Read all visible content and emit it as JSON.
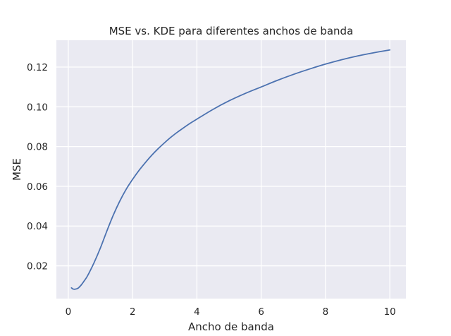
{
  "chart_data": {
    "type": "line",
    "title": "MSE vs. KDE para diferentes anchos de banda",
    "xlabel": "Ancho de banda",
    "ylabel": "MSE",
    "xlim": [
      -0.37,
      10.5
    ],
    "ylim": [
      0.0035,
      0.1335
    ],
    "xticks": [
      0,
      2,
      4,
      6,
      8,
      10
    ],
    "xtick_labels": [
      "0",
      "2",
      "4",
      "6",
      "8",
      "10"
    ],
    "yticks": [
      0.02,
      0.04,
      0.06,
      0.08,
      0.1,
      0.12
    ],
    "ytick_labels": [
      "0.02",
      "0.04",
      "0.06",
      "0.08",
      "0.10",
      "0.12"
    ],
    "grid": true,
    "series": [
      {
        "color": "#4c72b0",
        "x": [
          0.1,
          0.15,
          0.2,
          0.3,
          0.4,
          0.5,
          0.6,
          0.8,
          1.0,
          1.2,
          1.4,
          1.6,
          1.8,
          2.0,
          2.2,
          2.4,
          2.6,
          2.8,
          3.0,
          3.2,
          3.4,
          3.6,
          3.8,
          4.0,
          4.5,
          5.0,
          5.5,
          6.0,
          6.5,
          7.0,
          7.5,
          8.0,
          8.5,
          9.0,
          9.5,
          10.0
        ],
        "y": [
          0.0089,
          0.0083,
          0.0082,
          0.0087,
          0.0103,
          0.0125,
          0.015,
          0.0215,
          0.029,
          0.0375,
          0.0455,
          0.0525,
          0.0585,
          0.0635,
          0.068,
          0.072,
          0.0757,
          0.079,
          0.082,
          0.0848,
          0.0873,
          0.0896,
          0.0918,
          0.0938,
          0.0987,
          0.103,
          0.1067,
          0.11,
          0.1133,
          0.1163,
          0.119,
          0.1215,
          0.1237,
          0.1256,
          0.1272,
          0.1286
        ]
      }
    ]
  }
}
